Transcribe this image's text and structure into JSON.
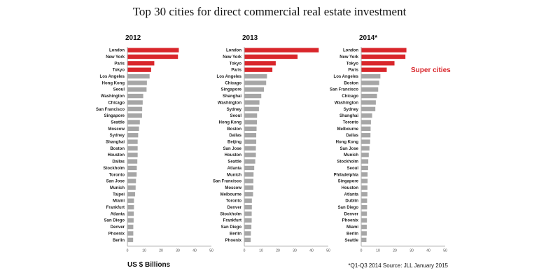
{
  "chart_data": {
    "type": "bar",
    "orientation": "horizontal",
    "title": "Top 30 cities for direct commercial real estate investment",
    "xlabel": "US $ Billions",
    "footnote": "*Q1-Q3 2014 Source: JLL January 2015",
    "annotation": "Super cities",
    "xlim": [
      0,
      50
    ],
    "xticks": [
      0,
      10,
      20,
      30,
      40,
      50
    ],
    "colors": {
      "super": "#d9262b",
      "other": "#a6a6a6"
    },
    "super_count": 4,
    "panels": [
      {
        "title": "2012",
        "categories": [
          "London",
          "New York",
          "Paris",
          "Tokyo",
          "Los Angeles",
          "Hong Kong",
          "Seoul",
          "Washington",
          "Chicago",
          "San Francisco",
          "Singapore",
          "Seattle",
          "Moscow",
          "Sydney",
          "Shanghai",
          "Boston",
          "Houston",
          "Dallas",
          "Stockholm",
          "Toronto",
          "San Jose",
          "Munich",
          "Taipei",
          "Miami",
          "Frankfurt",
          "Atlanta",
          "San Diego",
          "Denver",
          "Phoenix",
          "Berlin"
        ],
        "values": [
          30.4,
          29.9,
          15.8,
          13.9,
          13.0,
          11.4,
          11.2,
          9.2,
          8.9,
          8.6,
          8.5,
          7.2,
          6.7,
          6.2,
          5.9,
          5.9,
          5.9,
          5.7,
          5.4,
          5.3,
          4.9,
          4.7,
          4.4,
          3.7,
          3.7,
          3.6,
          3.5,
          3.3,
          3.3,
          3.2
        ]
      },
      {
        "title": "2013",
        "categories": [
          "London",
          "New York",
          "Tokyo",
          "Paris",
          "Los Angeles",
          "Chicago",
          "Singapore",
          "Shanghai",
          "Washington",
          "Sydney",
          "Seoul",
          "Hong Kong",
          "Boston",
          "Dallas",
          "Beijing",
          "San Jose",
          "Houston",
          "Seattle",
          "Atlanta",
          "Munich",
          "San Francisco",
          "Moscow",
          "Melbourne",
          "Toronto",
          "Denver",
          "Stockholm",
          "Frankfurt",
          "San Diego",
          "Berlin",
          "Phoenix"
        ],
        "values": [
          44.1,
          31.5,
          18.5,
          16.5,
          13.3,
          12.8,
          11.5,
          9.9,
          8.8,
          8.5,
          7.4,
          7.3,
          7.1,
          6.9,
          6.9,
          6.7,
          6.7,
          6.3,
          5.7,
          5.3,
          5.2,
          5.2,
          5.0,
          4.3,
          4.3,
          4.2,
          4.2,
          4.0,
          3.7,
          3.6
        ]
      },
      {
        "title": "2014*",
        "categories": [
          "London",
          "New York",
          "Tokyo",
          "Paris",
          "Los Angeles",
          "Boston",
          "San Francisco",
          "Chicago",
          "Washington",
          "Sydney",
          "Shanghai",
          "Toronto",
          "Melbourne",
          "Dallas",
          "Hong Kong",
          "San Jose",
          "Munich",
          "Stockholm",
          "Seoul",
          "Philadelphia",
          "Singapore",
          "Houston",
          "Atlanta",
          "Dublin",
          "San Diego",
          "Denver",
          "Phoenix",
          "Miami",
          "Berlin",
          "Seattle"
        ],
        "values": [
          26.7,
          26.1,
          19.6,
          15.0,
          11.2,
          10.5,
          9.9,
          9.2,
          8.5,
          8.2,
          6.3,
          5.6,
          5.4,
          5.3,
          5.1,
          4.7,
          4.3,
          4.0,
          3.9,
          3.6,
          3.6,
          3.5,
          3.5,
          3.3,
          3.3,
          3.2,
          3.2,
          3.1,
          3.1,
          2.9
        ]
      }
    ]
  }
}
